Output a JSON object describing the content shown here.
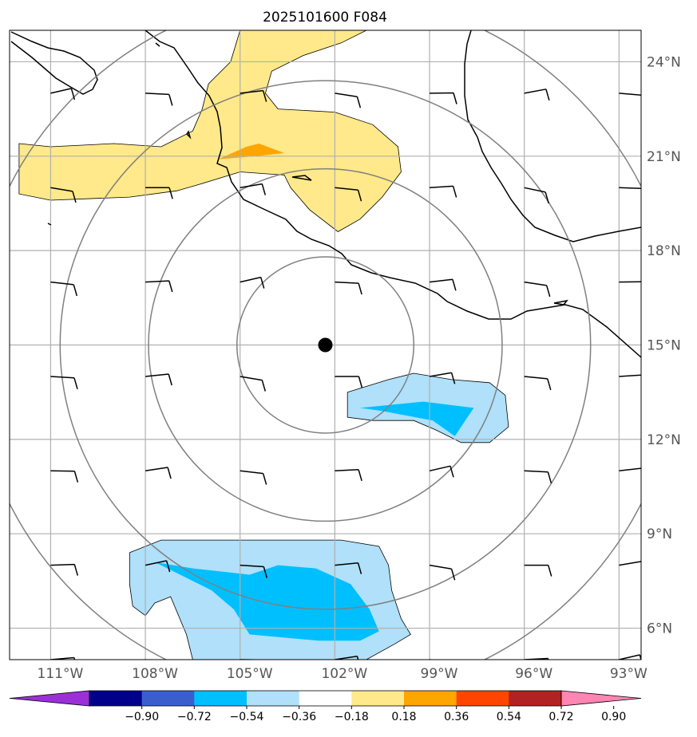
{
  "chart_data": {
    "type": "contour-map",
    "title": "2025101600 F084",
    "xlim_lon": [
      -112.3,
      -92.3
    ],
    "ylim_lat": [
      5.0,
      25.0
    ],
    "lon_ticks": [
      {
        "value": -111,
        "label": "111°W"
      },
      {
        "value": -108,
        "label": "108°W"
      },
      {
        "value": -105,
        "label": "105°W"
      },
      {
        "value": -102,
        "label": "102°W"
      },
      {
        "value": -99,
        "label": "99°W"
      },
      {
        "value": -96,
        "label": "96°W"
      },
      {
        "value": -93,
        "label": "93°W"
      }
    ],
    "lat_ticks": [
      {
        "value": 24,
        "label": "24°N"
      },
      {
        "value": 21,
        "label": "21°N"
      },
      {
        "value": 18,
        "label": "18°N"
      },
      {
        "value": 15,
        "label": "15°N"
      },
      {
        "value": 12,
        "label": "12°N"
      },
      {
        "value": 9,
        "label": "9°N"
      },
      {
        "value": 6,
        "label": "6°N"
      }
    ],
    "center": {
      "lon": -102.3,
      "lat": 15.0
    },
    "range_rings_deg": [
      2.8,
      5.6,
      8.4,
      11.2
    ],
    "grid": true,
    "colorbar": {
      "levels": [
        -0.9,
        -0.72,
        -0.54,
        -0.36,
        -0.18,
        0.18,
        0.36,
        0.54,
        0.72,
        0.9
      ],
      "level_labels": [
        "−0.90",
        "−0.72",
        "−0.54",
        "−0.36",
        "−0.18",
        "0.18",
        "0.36",
        "0.54",
        "0.72",
        "0.90"
      ],
      "colors": [
        "#9b30d8",
        "#00008b",
        "#3a5fcd",
        "#00bfff",
        "#b0e0fa",
        "#ffffff",
        "#ffe98a",
        "#ffa500",
        "#ff4500",
        "#b22222",
        "#ff85b3"
      ],
      "extend": "both"
    },
    "contour_regions": [
      {
        "level": 0.18,
        "color": "#ffe98a",
        "polygon": [
          [
            -112,
            21.4
          ],
          [
            -111,
            21.3
          ],
          [
            -109,
            21.4
          ],
          [
            -107.5,
            21.3
          ],
          [
            -106.5,
            21.8
          ],
          [
            -106.2,
            22.5
          ],
          [
            -106,
            23.3
          ],
          [
            -105.3,
            24
          ],
          [
            -105,
            25
          ],
          [
            -101,
            25
          ],
          [
            -101.8,
            24.6
          ],
          [
            -103,
            24.2
          ],
          [
            -104,
            23.7
          ],
          [
            -104.2,
            23
          ],
          [
            -103.8,
            22.5
          ],
          [
            -102,
            22.4
          ],
          [
            -100.8,
            22
          ],
          [
            -100,
            21.3
          ],
          [
            -99.9,
            20.5
          ],
          [
            -100.5,
            19.7
          ],
          [
            -101.2,
            19
          ],
          [
            -101.9,
            18.6
          ],
          [
            -102.8,
            19.3
          ],
          [
            -103.4,
            20
          ],
          [
            -103.6,
            20.4
          ],
          [
            -105,
            20.5
          ],
          [
            -106.3,
            20.1
          ],
          [
            -107,
            19.9
          ],
          [
            -108.5,
            19.7
          ],
          [
            -111,
            19.6
          ],
          [
            -112,
            19.8
          ]
        ]
      },
      {
        "level": 0.36,
        "color": "#ffa500",
        "polygon": [
          [
            -105.7,
            20.9
          ],
          [
            -104.8,
            21.3
          ],
          [
            -104.4,
            21.4
          ],
          [
            -103.6,
            21.1
          ],
          [
            -104.5,
            21
          ]
        ]
      },
      {
        "level": -0.18,
        "color": "#b0e0fa",
        "polygon": [
          [
            -101.6,
            13.5
          ],
          [
            -100.3,
            13.9
          ],
          [
            -99.5,
            14.1
          ],
          [
            -98.3,
            13.9
          ],
          [
            -97.1,
            13.8
          ],
          [
            -96.6,
            13.4
          ],
          [
            -96.5,
            12.4
          ],
          [
            -97.1,
            11.9
          ],
          [
            -98,
            11.9
          ],
          [
            -98.8,
            12.3
          ],
          [
            -99.5,
            12.6
          ],
          [
            -100.8,
            12.6
          ],
          [
            -101.6,
            12.7
          ]
        ]
      },
      {
        "level": -0.36,
        "color": "#00bfff",
        "polygon": [
          [
            -101.2,
            13
          ],
          [
            -99.2,
            13.2
          ],
          [
            -97.6,
            13.0
          ],
          [
            -98.2,
            12.1
          ],
          [
            -98.9,
            12.6
          ],
          [
            -100.5,
            12.9
          ]
        ]
      },
      {
        "level": -0.18,
        "color": "#b0e0fa",
        "polygon": [
          [
            -108.5,
            8.4
          ],
          [
            -107.5,
            8.8
          ],
          [
            -106.5,
            8.8
          ],
          [
            -104,
            8.8
          ],
          [
            -101.8,
            8.8
          ],
          [
            -100.6,
            8.6
          ],
          [
            -100.3,
            8.0
          ],
          [
            -100.2,
            7.2
          ],
          [
            -99.9,
            6.3
          ],
          [
            -99.6,
            5.8
          ],
          [
            -100.1,
            5.5
          ],
          [
            -101,
            5
          ],
          [
            -106.5,
            5
          ],
          [
            -106.7,
            5.8
          ],
          [
            -107.2,
            7.0
          ],
          [
            -107.7,
            6.8
          ],
          [
            -108,
            6.4
          ],
          [
            -108.4,
            6.7
          ],
          [
            -108.5,
            7.4
          ]
        ]
      },
      {
        "level": -0.36,
        "color": "#00bfff",
        "polygon": [
          [
            -107.7,
            8.1
          ],
          [
            -106.5,
            7.9
          ],
          [
            -105.6,
            7.8
          ],
          [
            -104.7,
            7.7
          ],
          [
            -103.8,
            8.0
          ],
          [
            -102.6,
            7.9
          ],
          [
            -101.5,
            7.4
          ],
          [
            -100.9,
            6.6
          ],
          [
            -100.6,
            5.9
          ],
          [
            -101.2,
            5.6
          ],
          [
            -102.5,
            5.6
          ],
          [
            -104.7,
            5.8
          ],
          [
            -105.2,
            6.6
          ],
          [
            -105.9,
            7.2
          ],
          [
            -106.9,
            7.7
          ]
        ]
      }
    ],
    "wind_barbs_lon": [
      -111.0,
      -108.0,
      -105.0,
      -102.0,
      -99.0,
      -96.0,
      -93.0
    ],
    "wind_barbs_lat": [
      23.0,
      20.0,
      17.0,
      14.0,
      11.0,
      8.0,
      5.0
    ],
    "center_marker": {
      "lon": -102.3,
      "lat": 15.0
    }
  },
  "colors": {
    "grid": "#b0b0b0",
    "rings": "#808080",
    "coast": "#000000"
  }
}
